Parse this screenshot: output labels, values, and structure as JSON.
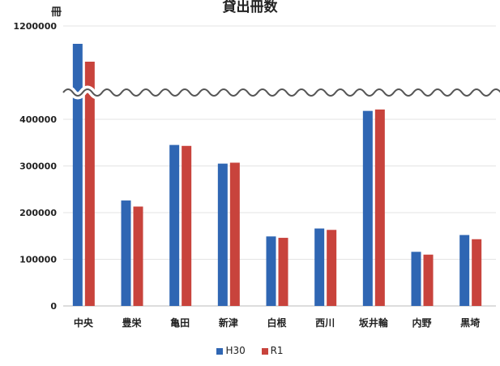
{
  "chart_data": {
    "type": "bar",
    "title": "貸出冊数",
    "unit_label": "冊",
    "categories": [
      "中央",
      "豊栄",
      "亀田",
      "新津",
      "白根",
      "西川",
      "坂井輪",
      "内野",
      "黒埼"
    ],
    "series": [
      {
        "name": "H30",
        "color": "#2f66b3",
        "values": [
          1150000,
          226000,
          345000,
          305000,
          149000,
          166000,
          418000,
          116000,
          152000
        ]
      },
      {
        "name": "R1",
        "color": "#c8433c",
        "values": [
          1100000,
          213000,
          343000,
          307000,
          146000,
          163000,
          421000,
          110000,
          143000
        ]
      }
    ],
    "yticks": [
      0,
      100000,
      200000,
      300000,
      400000,
      1200000
    ],
    "ytick_labels": [
      "0",
      "100000",
      "200000",
      "300000",
      "400000",
      "1200000"
    ],
    "axis_break": true,
    "ylim": [
      0,
      1200000
    ]
  }
}
